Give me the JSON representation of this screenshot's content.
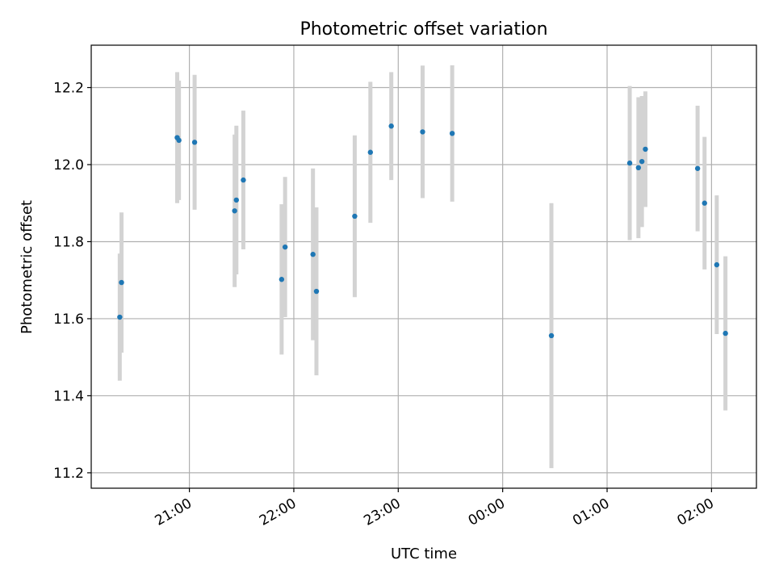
{
  "chart_data": {
    "type": "scatter",
    "title": "Photometric offset variation",
    "xlabel": "UTC time",
    "ylabel": "Photometric offset",
    "ylim": [
      11.16,
      12.31
    ],
    "yticks": [
      "11.2",
      "11.4",
      "11.6",
      "11.8",
      "12.0",
      "12.2"
    ],
    "ytick_values": [
      11.2,
      11.4,
      11.6,
      11.8,
      12.0,
      12.2
    ],
    "xlim_hours": [
      20.06,
      26.43
    ],
    "xticks": [
      "21:00",
      "22:00",
      "23:00",
      "00:00",
      "01:00",
      "02:00"
    ],
    "xtick_hours": [
      21,
      22,
      23,
      24,
      25,
      26
    ],
    "grid": true,
    "series": [
      {
        "points": [
          {
            "t": "20:20",
            "y": 11.604,
            "err": 0.165
          },
          {
            "t": "20:21",
            "y": 11.694,
            "err": 0.182
          },
          {
            "t": "20:53",
            "y": 12.07,
            "err": 0.17
          },
          {
            "t": "20:54",
            "y": 12.063,
            "err": 0.155
          },
          {
            "t": "21:03",
            "y": 12.058,
            "err": 0.175
          },
          {
            "t": "21:26",
            "y": 11.88,
            "err": 0.198
          },
          {
            "t": "21:27",
            "y": 11.908,
            "err": 0.193
          },
          {
            "t": "21:31",
            "y": 11.96,
            "err": 0.18
          },
          {
            "t": "21:53",
            "y": 11.702,
            "err": 0.195
          },
          {
            "t": "21:55",
            "y": 11.786,
            "err": 0.182
          },
          {
            "t": "22:11",
            "y": 11.767,
            "err": 0.223
          },
          {
            "t": "22:13",
            "y": 11.671,
            "err": 0.218
          },
          {
            "t": "22:35",
            "y": 11.866,
            "err": 0.21
          },
          {
            "t": "22:44",
            "y": 12.032,
            "err": 0.183
          },
          {
            "t": "22:56",
            "y": 12.1,
            "err": 0.14
          },
          {
            "t": "23:14",
            "y": 12.085,
            "err": 0.172
          },
          {
            "t": "23:31",
            "y": 12.081,
            "err": 0.177
          },
          {
            "t": "00:28",
            "y": 11.556,
            "err": 0.344
          },
          {
            "t": "01:13",
            "y": 12.004,
            "err": 0.2
          },
          {
            "t": "01:18",
            "y": 11.992,
            "err": 0.183
          },
          {
            "t": "01:20",
            "y": 12.008,
            "err": 0.17
          },
          {
            "t": "01:22",
            "y": 12.04,
            "err": 0.15
          },
          {
            "t": "01:52",
            "y": 11.99,
            "err": 0.163
          },
          {
            "t": "01:56",
            "y": 11.9,
            "err": 0.172
          },
          {
            "t": "02:03",
            "y": 11.74,
            "err": 0.18
          },
          {
            "t": "02:08",
            "y": 11.562,
            "err": 0.2
          }
        ],
        "color": "#1f77b4",
        "errorbar_color": "#d3d3d3"
      }
    ]
  }
}
